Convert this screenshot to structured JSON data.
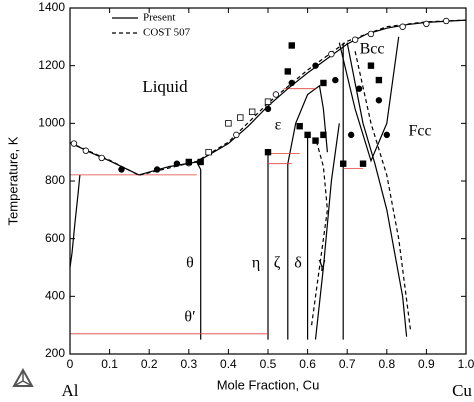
{
  "chart_data": {
    "type": "line",
    "x_label": "Mole Fraction, Cu",
    "y_label": "Temperature, K",
    "left_element": "Al",
    "right_element": "Cu",
    "xlim": [
      0,
      1
    ],
    "ylim": [
      200,
      1400
    ],
    "xticks": [
      0,
      0.1,
      0.2,
      0.3,
      0.4,
      0.5,
      0.6,
      0.7,
      0.8,
      0.9,
      {
        "value": 1,
        "label": "1.0"
      }
    ],
    "yticks": [
      200,
      400,
      600,
      800,
      1000,
      1200,
      1400
    ],
    "series": [
      {
        "name": "Present",
        "color": "#000000",
        "style": "solid",
        "x": [
          0,
          0.05,
          0.1,
          0.174,
          0.25,
          0.32,
          0.4,
          0.45,
          0.5,
          0.55,
          0.6,
          0.65,
          0.7,
          0.75,
          0.8,
          0.85,
          0.9,
          1
        ],
        "y": [
          933,
          900,
          870,
          821,
          850,
          866,
          930,
          990,
          1060,
          1120,
          1175,
          1225,
          1275,
          1310,
          1330,
          1342,
          1350,
          1358
        ]
      },
      {
        "name": "COST 507",
        "color": "#000000",
        "style": "dashed",
        "x": [
          0,
          0.1,
          0.174,
          0.32,
          0.4,
          0.5,
          0.6,
          0.7,
          0.8,
          0.9,
          1
        ],
        "y": [
          933,
          872,
          820,
          868,
          935,
          1070,
          1185,
          1285,
          1335,
          1352,
          1358
        ]
      }
    ],
    "boundaries": [
      {
        "color": "#000000",
        "style": "solid",
        "x": [
          0.025,
          0.02,
          0.012,
          0.005,
          0
        ],
        "y": [
          821,
          750,
          650,
          550,
          500
        ]
      },
      {
        "color": "#000000",
        "style": "solid",
        "x": [
          0.32,
          0.33,
          0.33
        ],
        "y": [
          866,
          840,
          250
        ]
      },
      {
        "color": "#000000",
        "style": "solid",
        "x": [
          0.5,
          0.5
        ],
        "y": [
          900,
          250
        ]
      },
      {
        "color": "#000000",
        "style": "solid",
        "x": [
          0.55,
          0.55
        ],
        "y": [
          860,
          250
        ]
      },
      {
        "color": "#000000",
        "style": "solid",
        "x": [
          0.6,
          0.6
        ],
        "y": [
          960,
          250
        ]
      },
      {
        "color": "#000000",
        "style": "solid",
        "x": [
          0.55,
          0.57,
          0.6,
          0.63,
          0.64,
          0.65
        ],
        "y": [
          860,
          1000,
          1100,
          1130,
          1050,
          900
        ]
      },
      {
        "color": "#000000",
        "style": "solid",
        "x": [
          0.69,
          0.69
        ],
        "y": [
          1280,
          250
        ]
      },
      {
        "color": "#000000",
        "style": "solid",
        "x": [
          0.62,
          0.64,
          0.66,
          0.68
        ],
        "y": [
          250,
          500,
          800,
          1000
        ]
      },
      {
        "color": "#000000",
        "style": "solid",
        "x": [
          0.7,
          0.74,
          0.77,
          0.8,
          0.82,
          0.84,
          0.85
        ],
        "y": [
          1280,
          1000,
          860,
          700,
          550,
          400,
          260
        ]
      },
      {
        "color": "#000000",
        "style": "solid",
        "x": [
          0.68,
          0.72,
          0.76,
          0.8,
          0.83
        ],
        "y": [
          1280,
          1050,
          870,
          1000,
          1300
        ]
      },
      {
        "color": "#000000",
        "style": "dashed",
        "x": [
          0.61,
          0.63,
          0.65,
          0.64,
          0.62
        ],
        "y": [
          300,
          500,
          700,
          850,
          950
        ]
      },
      {
        "color": "#000000",
        "style": "dashed",
        "x": [
          0.72,
          0.76,
          0.8,
          0.83,
          0.86
        ],
        "y": [
          1250,
          1000,
          820,
          600,
          280
        ]
      },
      {
        "color": "#e0403a",
        "style": "solid",
        "x": [
          0,
          0.32
        ],
        "y": [
          821,
          821
        ]
      },
      {
        "color": "#e0403a",
        "style": "solid",
        "x": [
          0,
          0.5
        ],
        "y": [
          270,
          270
        ]
      },
      {
        "color": "#e0403a",
        "style": "solid",
        "x": [
          0.5,
          0.58
        ],
        "y": [
          895,
          895
        ]
      },
      {
        "color": "#e0403a",
        "style": "solid",
        "x": [
          0.5,
          0.56
        ],
        "y": [
          860,
          860
        ]
      },
      {
        "color": "#e0403a",
        "style": "solid",
        "x": [
          0.54,
          0.62
        ],
        "y": [
          1120,
          1120
        ]
      },
      {
        "color": "#e0403a",
        "style": "solid",
        "x": [
          0.69,
          0.74
        ],
        "y": [
          843,
          843
        ]
      }
    ],
    "points": [
      {
        "marker": "circle",
        "filled": false,
        "color": "#000000",
        "x": [
          0.01,
          0.04,
          0.08,
          0.3,
          0.42,
          0.52,
          0.66,
          0.72,
          0.76,
          0.84,
          0.9,
          0.95
        ],
        "y": [
          930,
          905,
          880,
          862,
          960,
          1100,
          1240,
          1290,
          1310,
          1335,
          1345,
          1355
        ]
      },
      {
        "marker": "square",
        "filled": false,
        "color": "#000000",
        "x": [
          0.35,
          0.4,
          0.43,
          0.46,
          0.5
        ],
        "y": [
          900,
          1000,
          1020,
          1040,
          1075
        ]
      },
      {
        "marker": "circle",
        "filled": true,
        "color": "#000000",
        "x": [
          0.13,
          0.22,
          0.27,
          0.5,
          0.56,
          0.62,
          0.67,
          0.71,
          0.73,
          0.78,
          0.8
        ],
        "y": [
          840,
          840,
          860,
          1050,
          1140,
          1200,
          1150,
          960,
          1120,
          1080,
          960
        ]
      },
      {
        "marker": "square",
        "filled": true,
        "color": "#000000",
        "x": [
          0.3,
          0.33,
          0.5,
          0.55,
          0.56,
          0.58,
          0.6,
          0.62,
          0.64,
          0.64,
          0.69,
          0.74,
          0.76,
          0.78
        ],
        "y": [
          866,
          866,
          900,
          1180,
          1270,
          990,
          960,
          940,
          1140,
          960,
          860,
          860,
          1200,
          1150
        ]
      }
    ],
    "legend": "top-left",
    "annotations": [
      "Liquid",
      "ε",
      "Bcc",
      "Fcc",
      "θ",
      "η",
      "ζ",
      "δ",
      "γ",
      "θ′"
    ]
  }
}
